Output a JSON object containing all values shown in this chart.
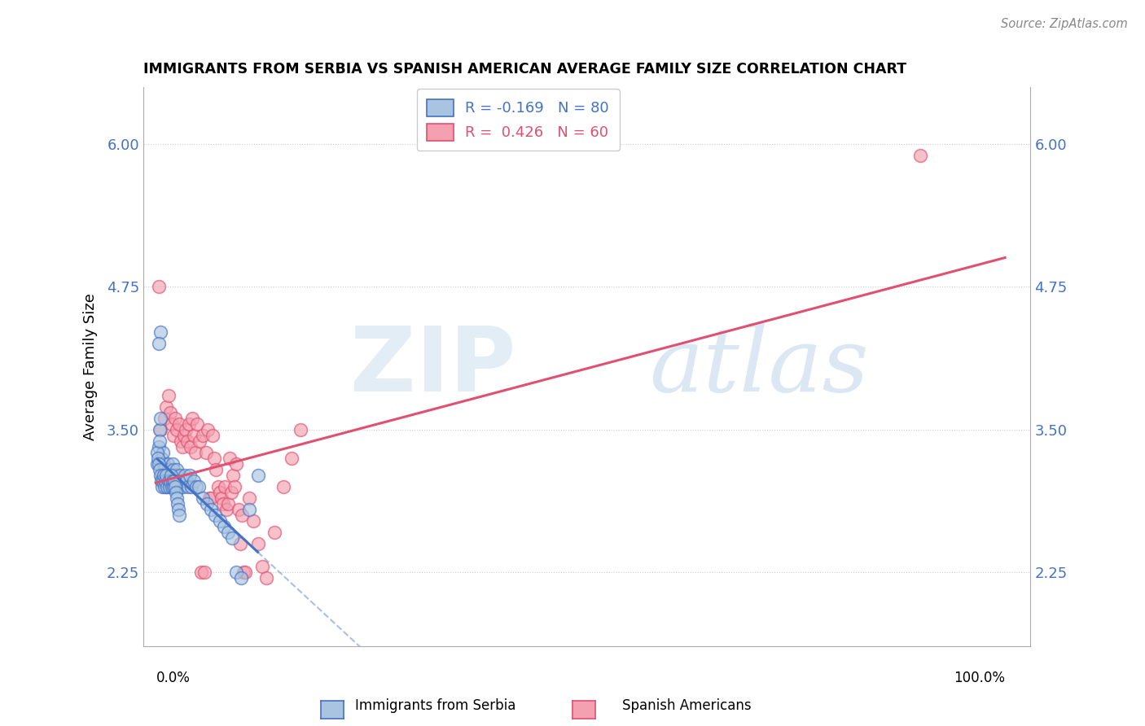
{
  "title": "IMMIGRANTS FROM SERBIA VS SPANISH AMERICAN AVERAGE FAMILY SIZE CORRELATION CHART",
  "source": "Source: ZipAtlas.com",
  "ylabel": "Average Family Size",
  "yticks": [
    2.25,
    3.5,
    4.75,
    6.0
  ],
  "background_color": "#ffffff",
  "serbia_color": "#a8c4e0",
  "spanish_color": "#f4a0b0",
  "serbia_line_color": "#4472c4",
  "spanish_line_color": "#e05070",
  "serbia_R": -0.169,
  "serbia_N": 80,
  "spanish_R": 0.426,
  "spanish_N": 60,
  "watermark_zip": "ZIP",
  "watermark_atlas": "atlas",
  "serbia_x": [
    0.2,
    0.3,
    0.4,
    0.5,
    0.6,
    0.7,
    0.8,
    0.9,
    1.0,
    1.1,
    1.2,
    1.3,
    1.4,
    1.5,
    1.6,
    1.7,
    1.8,
    1.9,
    2.0,
    2.1,
    2.2,
    2.3,
    2.4,
    2.5,
    2.6,
    2.7,
    2.8,
    2.9,
    3.0,
    3.2,
    3.4,
    3.6,
    3.8,
    4.0,
    4.2,
    4.5,
    4.8,
    5.0,
    5.5,
    6.0,
    6.5,
    7.0,
    7.5,
    8.0,
    8.5,
    9.0,
    9.5,
    10.0,
    11.0,
    12.0,
    0.15,
    0.25,
    0.35,
    0.45,
    0.55,
    0.65,
    0.75,
    0.85,
    0.95,
    1.05,
    1.15,
    1.25,
    1.35,
    1.45,
    1.55,
    1.65,
    1.75,
    1.85,
    1.95,
    2.05,
    2.15,
    2.25,
    2.35,
    2.45,
    2.55,
    2.65,
    2.75,
    0.3,
    0.5,
    0.4
  ],
  "serbia_y": [
    3.2,
    3.35,
    3.5,
    4.35,
    3.25,
    3.1,
    3.3,
    3.2,
    3.15,
    3.1,
    3.0,
    3.1,
    3.2,
    3.15,
    3.1,
    3.05,
    3.0,
    3.1,
    3.2,
    3.15,
    3.1,
    3.05,
    3.1,
    3.15,
    3.0,
    3.05,
    3.1,
    3.0,
    3.05,
    3.0,
    3.1,
    3.05,
    3.0,
    3.1,
    3.0,
    3.05,
    3.0,
    3.0,
    2.9,
    2.85,
    2.8,
    2.75,
    2.7,
    2.65,
    2.6,
    2.55,
    2.25,
    2.2,
    2.8,
    3.1,
    3.3,
    3.25,
    3.2,
    3.15,
    3.1,
    3.05,
    3.0,
    3.05,
    3.1,
    3.0,
    3.05,
    3.1,
    3.0,
    3.05,
    3.0,
    3.05,
    3.1,
    3.0,
    3.05,
    3.0,
    3.05,
    3.0,
    2.95,
    2.9,
    2.85,
    2.8,
    2.75,
    4.25,
    3.6,
    3.4
  ],
  "spanish_x": [
    0.3,
    0.5,
    1.0,
    1.2,
    1.5,
    1.7,
    1.9,
    2.1,
    2.3,
    2.5,
    2.7,
    2.9,
    3.1,
    3.3,
    3.5,
    3.7,
    3.9,
    4.1,
    4.3,
    4.5,
    4.7,
    4.9,
    5.1,
    5.3,
    5.5,
    5.7,
    5.9,
    6.1,
    6.3,
    6.5,
    6.7,
    6.9,
    7.1,
    7.3,
    7.5,
    7.7,
    7.9,
    8.1,
    8.3,
    8.5,
    8.7,
    8.9,
    9.1,
    9.3,
    9.5,
    9.7,
    9.9,
    10.1,
    10.3,
    10.5,
    11.0,
    11.5,
    12.0,
    12.5,
    13.0,
    14.0,
    15.0,
    16.0,
    17.0,
    90.0
  ],
  "spanish_y": [
    4.75,
    3.5,
    3.6,
    3.7,
    3.8,
    3.65,
    3.55,
    3.45,
    3.6,
    3.5,
    3.55,
    3.4,
    3.35,
    3.45,
    3.5,
    3.4,
    3.55,
    3.35,
    3.6,
    3.45,
    3.3,
    3.55,
    3.4,
    2.25,
    3.45,
    2.25,
    3.3,
    3.5,
    2.9,
    2.9,
    3.45,
    3.25,
    3.15,
    3.0,
    2.95,
    2.9,
    2.85,
    3.0,
    2.8,
    2.85,
    3.25,
    2.95,
    3.1,
    3.0,
    3.2,
    2.8,
    2.5,
    2.75,
    2.25,
    2.25,
    2.9,
    2.7,
    2.5,
    2.3,
    2.2,
    2.6,
    3.0,
    3.25,
    3.5,
    5.9
  ]
}
